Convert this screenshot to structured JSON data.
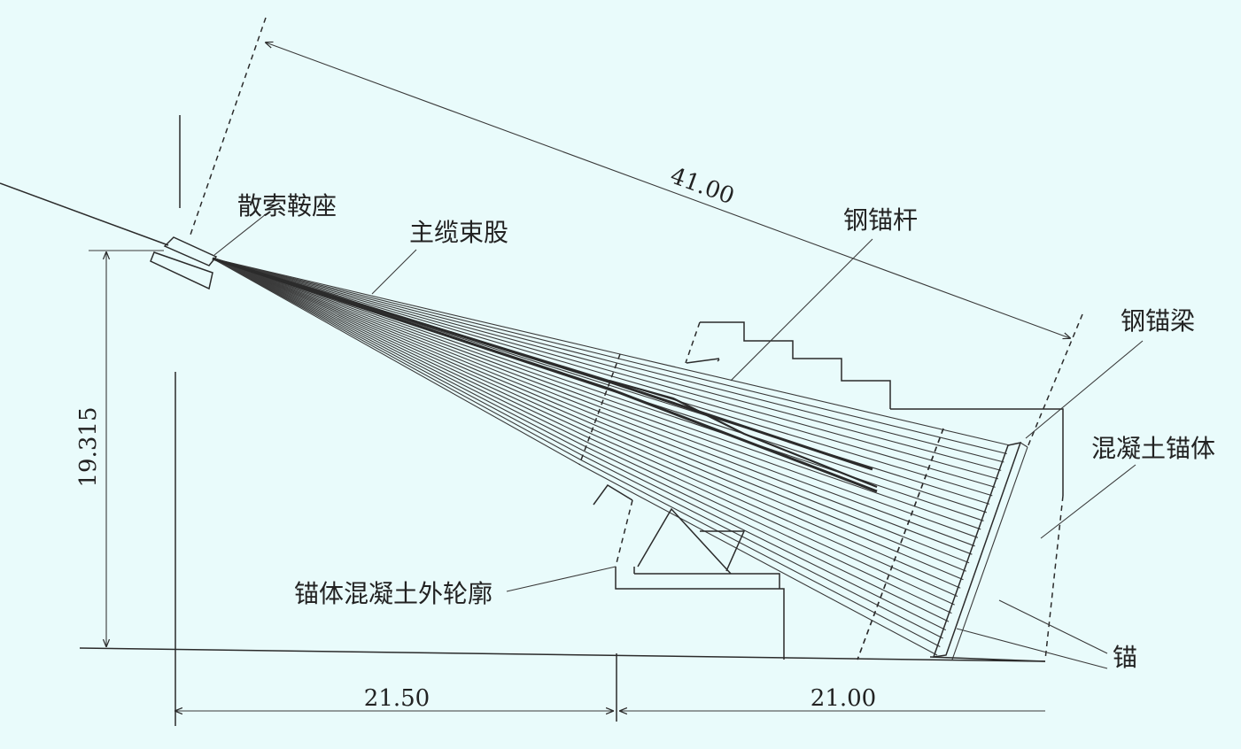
{
  "labels": {
    "saddle": "散索鞍座",
    "main_cable": "主缆束股",
    "steel_rod": "钢锚杆",
    "steel_beam": "钢锚梁",
    "concrete_anchor": "混凝土锚体",
    "outline": "锚体混凝土外轮廓",
    "anchor": "锚"
  },
  "dimensions": {
    "diag": "41.00",
    "height": "19.315",
    "base_left": "21.50",
    "base_right": "21.00"
  }
}
